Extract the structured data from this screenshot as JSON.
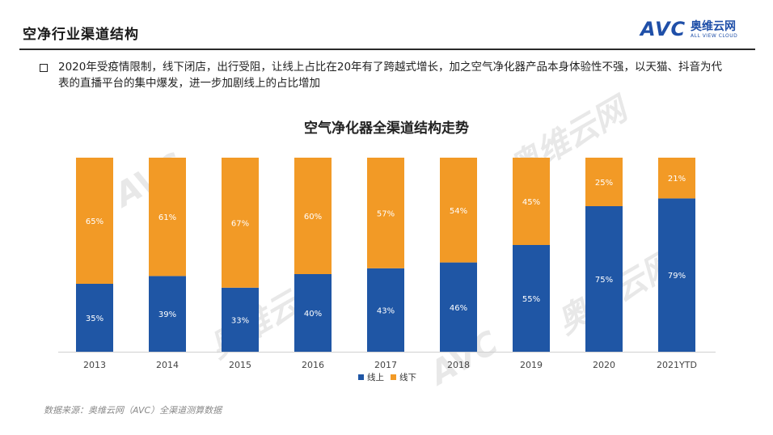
{
  "slide": {
    "title": "空净行业渠道结构",
    "bullet": "2020年受疫情限制，线下闭店，出行受阻，让线上占比在20年有了跨越式增长，加之空气净化器产品本身体验性不强，以天猫、抖音为代表的直播平台的集中爆发，进一步加剧线上的占比增加",
    "source": "数据来源：奥维云网（AVC）全渠道测算数据"
  },
  "logo": {
    "avc": "AVC",
    "cn": "奥维云网",
    "en": "ALL VIEW CLOUD"
  },
  "colors": {
    "online": "#1f56a5",
    "offline": "#f29a26"
  },
  "chart_data": {
    "type": "bar",
    "stacked": true,
    "title": "空气净化器全渠道结构走势",
    "categories": [
      "2013",
      "2014",
      "2015",
      "2016",
      "2017",
      "2018",
      "2019",
      "2020",
      "2021YTD"
    ],
    "series": [
      {
        "name": "线上",
        "values": [
          35,
          39,
          33,
          40,
          43,
          46,
          55,
          75,
          79
        ],
        "labels": [
          "35%",
          "39%",
          "33%",
          "40%",
          "43%",
          "46%",
          "55%",
          "75%",
          "79%"
        ]
      },
      {
        "name": "线下",
        "values": [
          65,
          61,
          67,
          60,
          57,
          54,
          45,
          25,
          21
        ],
        "labels": [
          "65%",
          "61%",
          "67%",
          "60%",
          "57%",
          "54%",
          "45%",
          "25%",
          "21%"
        ]
      }
    ],
    "ylim": [
      0,
      100
    ],
    "legend": "bottom"
  }
}
